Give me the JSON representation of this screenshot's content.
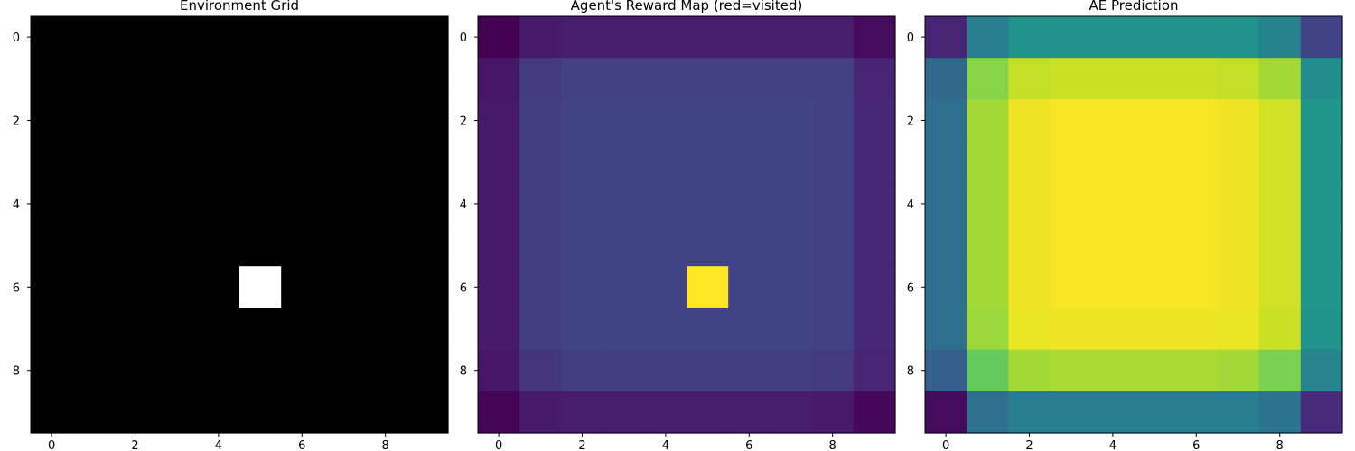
{
  "chart_data": [
    {
      "type": "heatmap",
      "title": "Environment Grid",
      "colormap": "gray",
      "vmin": 0,
      "vmax": 1,
      "x_ticks": [
        "0",
        "2",
        "4",
        "6",
        "8"
      ],
      "y_ticks": [
        "0",
        "2",
        "4",
        "6",
        "8"
      ],
      "grid": false,
      "matrix": [
        [
          0,
          0,
          0,
          0,
          0,
          0,
          0,
          0,
          0,
          0
        ],
        [
          0,
          0,
          0,
          0,
          0,
          0,
          0,
          0,
          0,
          0
        ],
        [
          0,
          0,
          0,
          0,
          0,
          0,
          0,
          0,
          0,
          0
        ],
        [
          0,
          0,
          0,
          0,
          0,
          0,
          0,
          0,
          0,
          0
        ],
        [
          0,
          0,
          0,
          0,
          0,
          0,
          0,
          0,
          0,
          0
        ],
        [
          0,
          0,
          0,
          0,
          0,
          0,
          0,
          0,
          0,
          0
        ],
        [
          0,
          0,
          0,
          0,
          0,
          1,
          0,
          0,
          0,
          0
        ],
        [
          0,
          0,
          0,
          0,
          0,
          0,
          0,
          0,
          0,
          0
        ],
        [
          0,
          0,
          0,
          0,
          0,
          0,
          0,
          0,
          0,
          0
        ],
        [
          0,
          0,
          0,
          0,
          0,
          0,
          0,
          0,
          0,
          0
        ]
      ]
    },
    {
      "type": "heatmap",
      "title": "Agent's Reward Map (red=visited)",
      "colormap": "viridis",
      "vmin": 0,
      "vmax": 1,
      "x_ticks": [
        "0",
        "2",
        "4",
        "6",
        "8"
      ],
      "y_ticks": [
        "0",
        "2",
        "4",
        "6",
        "8"
      ],
      "grid": false,
      "matrix": [
        [
          0.0,
          0.07,
          0.08,
          0.08,
          0.08,
          0.08,
          0.08,
          0.08,
          0.08,
          0.03
        ],
        [
          0.06,
          0.17,
          0.19,
          0.19,
          0.19,
          0.19,
          0.19,
          0.19,
          0.19,
          0.1
        ],
        [
          0.07,
          0.18,
          0.2,
          0.2,
          0.2,
          0.2,
          0.2,
          0.2,
          0.19,
          0.11
        ],
        [
          0.07,
          0.18,
          0.2,
          0.2,
          0.2,
          0.2,
          0.2,
          0.2,
          0.19,
          0.11
        ],
        [
          0.07,
          0.18,
          0.2,
          0.2,
          0.2,
          0.2,
          0.2,
          0.2,
          0.19,
          0.11
        ],
        [
          0.07,
          0.18,
          0.2,
          0.2,
          0.2,
          0.2,
          0.2,
          0.2,
          0.19,
          0.11
        ],
        [
          0.07,
          0.18,
          0.2,
          0.2,
          0.2,
          1.0,
          0.2,
          0.2,
          0.19,
          0.11
        ],
        [
          0.07,
          0.18,
          0.2,
          0.2,
          0.2,
          0.2,
          0.2,
          0.2,
          0.19,
          0.11
        ],
        [
          0.06,
          0.16,
          0.18,
          0.18,
          0.18,
          0.18,
          0.18,
          0.18,
          0.17,
          0.1
        ],
        [
          0.01,
          0.07,
          0.08,
          0.08,
          0.08,
          0.08,
          0.08,
          0.08,
          0.07,
          0.02
        ]
      ]
    },
    {
      "type": "heatmap",
      "title": "AE Prediction",
      "colormap": "viridis",
      "vmin": 0,
      "vmax": 1,
      "x_ticks": [
        "0",
        "2",
        "4",
        "6",
        "8"
      ],
      "y_ticks": [
        "0",
        "2",
        "4",
        "6",
        "8"
      ],
      "grid": false,
      "matrix": [
        [
          0.1,
          0.42,
          0.5,
          0.5,
          0.5,
          0.5,
          0.5,
          0.5,
          0.44,
          0.2
        ],
        [
          0.34,
          0.82,
          0.91,
          0.92,
          0.92,
          0.92,
          0.92,
          0.91,
          0.86,
          0.48
        ],
        [
          0.36,
          0.86,
          0.98,
          0.99,
          0.99,
          0.99,
          0.99,
          0.98,
          0.93,
          0.52
        ],
        [
          0.36,
          0.86,
          0.98,
          0.99,
          0.99,
          0.99,
          0.99,
          0.98,
          0.93,
          0.52
        ],
        [
          0.36,
          0.86,
          0.98,
          0.99,
          0.99,
          0.99,
          0.99,
          0.98,
          0.93,
          0.52
        ],
        [
          0.36,
          0.86,
          0.98,
          0.99,
          0.99,
          0.99,
          0.99,
          0.98,
          0.93,
          0.52
        ],
        [
          0.36,
          0.86,
          0.98,
          0.99,
          0.99,
          0.99,
          0.99,
          0.98,
          0.93,
          0.52
        ],
        [
          0.36,
          0.85,
          0.97,
          0.98,
          0.98,
          0.98,
          0.98,
          0.97,
          0.92,
          0.51
        ],
        [
          0.3,
          0.76,
          0.86,
          0.87,
          0.87,
          0.87,
          0.87,
          0.86,
          0.8,
          0.45
        ],
        [
          0.03,
          0.36,
          0.42,
          0.42,
          0.42,
          0.42,
          0.42,
          0.42,
          0.38,
          0.12
        ]
      ]
    }
  ]
}
